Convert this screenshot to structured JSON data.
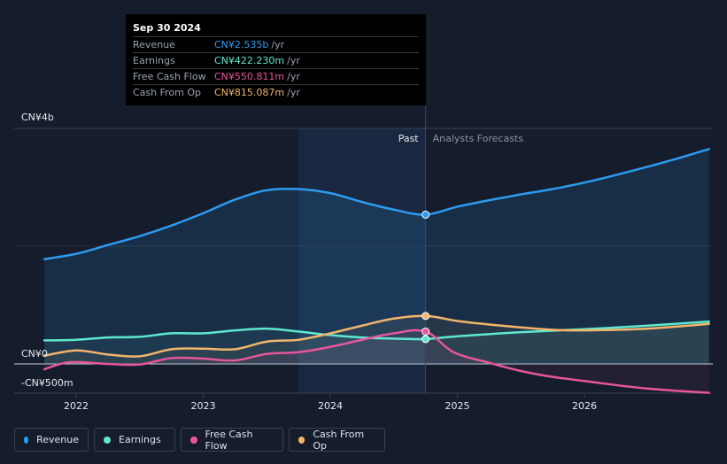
{
  "tooltip": {
    "date": "Sep 30 2024",
    "rows": [
      {
        "label": "Revenue",
        "value": "CN¥2.535b",
        "unit": "/yr",
        "color": "#2d9bf0"
      },
      {
        "label": "Earnings",
        "value": "CN¥422.230m",
        "unit": "/yr",
        "color": "#5ee8cf"
      },
      {
        "label": "Free Cash Flow",
        "value": "CN¥550.811m",
        "unit": "/yr",
        "color": "#e8559c"
      },
      {
        "label": "Cash From Op",
        "value": "CN¥815.087m",
        "unit": "/yr",
        "color": "#f2b56b"
      }
    ]
  },
  "legend": [
    {
      "label": "Revenue",
      "color": "#2d9bf0"
    },
    {
      "label": "Earnings",
      "color": "#5ee8cf"
    },
    {
      "label": "Free Cash Flow",
      "color": "#e8559c"
    },
    {
      "label": "Cash From Op",
      "color": "#f2b56b"
    }
  ],
  "chart_data": {
    "type": "line",
    "title": "",
    "y_axis_labels": [
      "CN¥4b",
      "CN¥0",
      "-CN¥500m"
    ],
    "ylim": [
      -0.5,
      4.0
    ],
    "y_unit": "CN¥ billions",
    "x_ticks": [
      2022,
      2023,
      2024,
      2025,
      2026
    ],
    "xlim": [
      2021.7,
      2026.98
    ],
    "past_label": "Past",
    "forecast_label": "Analysts Forecasts",
    "split_x": 2024.75,
    "highlight_x": 2023.75,
    "series": [
      {
        "name": "Revenue",
        "color": "#2d9bf0",
        "x": [
          2021.75,
          2022.0,
          2022.25,
          2022.5,
          2022.75,
          2023.0,
          2023.25,
          2023.5,
          2023.75,
          2024.0,
          2024.25,
          2024.5,
          2024.75,
          2025.0,
          2025.25,
          2025.5,
          2025.75,
          2026.0,
          2026.25,
          2026.5,
          2026.75,
          2026.98
        ],
        "values": [
          1.78,
          1.87,
          2.02,
          2.17,
          2.35,
          2.56,
          2.79,
          2.95,
          2.97,
          2.9,
          2.75,
          2.62,
          2.535,
          2.67,
          2.78,
          2.88,
          2.97,
          3.08,
          3.21,
          3.35,
          3.5,
          3.65
        ]
      },
      {
        "name": "Earnings",
        "color": "#5ee8cf",
        "x": [
          2021.75,
          2022.0,
          2022.25,
          2022.5,
          2022.75,
          2023.0,
          2023.25,
          2023.5,
          2023.75,
          2024.0,
          2024.25,
          2024.5,
          2024.75,
          2025.0,
          2025.5,
          2026.0,
          2026.5,
          2026.98
        ],
        "values": [
          0.4,
          0.41,
          0.45,
          0.46,
          0.52,
          0.52,
          0.57,
          0.6,
          0.55,
          0.49,
          0.45,
          0.43,
          0.422,
          0.47,
          0.54,
          0.59,
          0.65,
          0.72
        ]
      },
      {
        "name": "Free Cash Flow",
        "color": "#e8559c",
        "x": [
          2021.75,
          2021.95,
          2022.25,
          2022.5,
          2022.75,
          2023.0,
          2023.25,
          2023.5,
          2023.75,
          2024.0,
          2024.25,
          2024.5,
          2024.75,
          2024.97,
          2025.25,
          2025.5,
          2025.75,
          2026.0,
          2026.25,
          2026.5,
          2026.75,
          2026.98
        ],
        "values": [
          -0.09,
          0.03,
          0.0,
          -0.01,
          0.1,
          0.09,
          0.06,
          0.17,
          0.2,
          0.29,
          0.41,
          0.52,
          0.551,
          0.2,
          0.02,
          -0.12,
          -0.22,
          -0.29,
          -0.36,
          -0.42,
          -0.46,
          -0.49
        ]
      },
      {
        "name": "Cash From Op",
        "color": "#f2b56b",
        "x": [
          2021.75,
          2022.0,
          2022.25,
          2022.5,
          2022.75,
          2023.0,
          2023.25,
          2023.5,
          2023.75,
          2024.0,
          2024.25,
          2024.5,
          2024.75,
          2025.0,
          2025.25,
          2025.5,
          2025.75,
          2026.0,
          2026.5,
          2026.98
        ],
        "values": [
          0.14,
          0.23,
          0.16,
          0.13,
          0.25,
          0.26,
          0.25,
          0.38,
          0.41,
          0.52,
          0.65,
          0.77,
          0.815,
          0.73,
          0.67,
          0.62,
          0.58,
          0.57,
          0.6,
          0.68
        ]
      }
    ]
  }
}
